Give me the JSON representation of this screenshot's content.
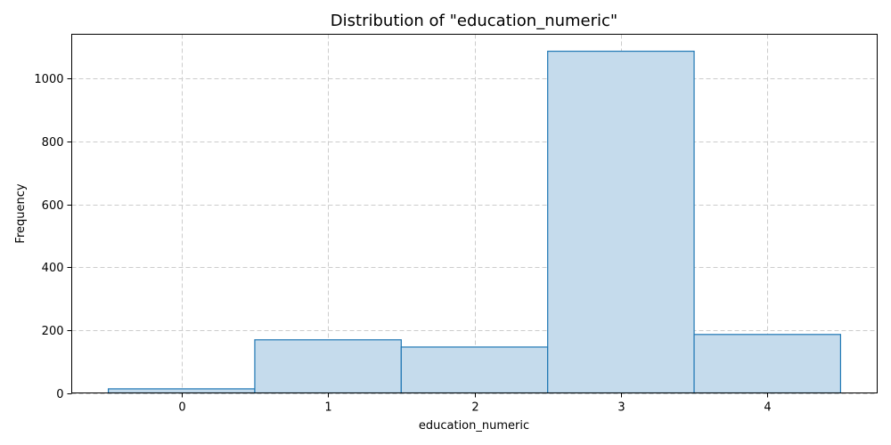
{
  "chart_data": {
    "type": "bar",
    "title": "Distribution of \"education_numeric\"",
    "xlabel": "education_numeric",
    "ylabel": "Frequency",
    "bins": [
      {
        "left": -0.5,
        "right": 0.5,
        "count": 13
      },
      {
        "left": 0.5,
        "right": 1.5,
        "count": 169
      },
      {
        "left": 1.5,
        "right": 2.5,
        "count": 146
      },
      {
        "left": 2.5,
        "right": 3.5,
        "count": 1087
      },
      {
        "left": 3.5,
        "right": 4.5,
        "count": 186
      }
    ],
    "xticks": [
      0,
      1,
      2,
      3,
      4
    ],
    "yticks": [
      0,
      200,
      400,
      600,
      800,
      1000
    ],
    "xlim": [
      -0.75,
      4.75
    ],
    "ylim": [
      0,
      1141
    ],
    "grid": true,
    "bar_fill": "#c5dbec",
    "bar_edge": "#1f77b4"
  }
}
